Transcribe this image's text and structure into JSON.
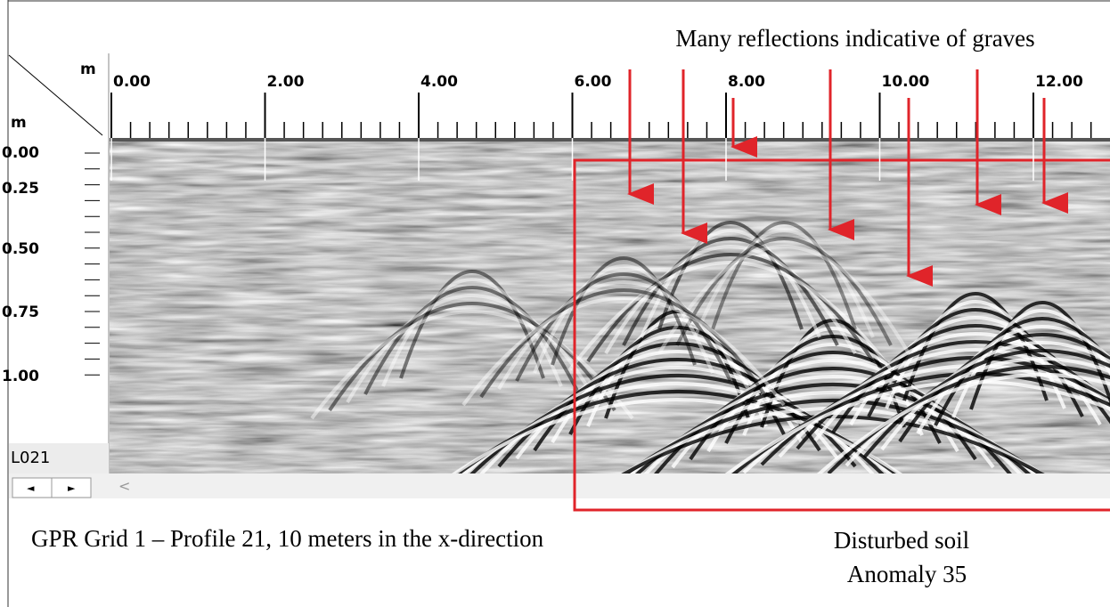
{
  "window": {
    "x_unit": "m",
    "y_unit": "m",
    "x_ticks": [
      "0.00",
      "2.00",
      "4.00",
      "6.00",
      "8.00",
      "10.00",
      "12.00"
    ],
    "y_ticks": [
      "0.00",
      "0.25",
      "0.50",
      "0.75",
      "1.00"
    ],
    "profile": "L021",
    "scroll_left": "◄",
    "scroll_right": "►",
    "scroll_arrow": "<"
  },
  "annotations": {
    "top": "Many reflections indicative of graves",
    "caption": "GPR Grid 1 – Profile 21, 10 meters in the x-direction",
    "box_line1": "Disturbed soil",
    "box_line2": "Anomaly 35"
  }
}
